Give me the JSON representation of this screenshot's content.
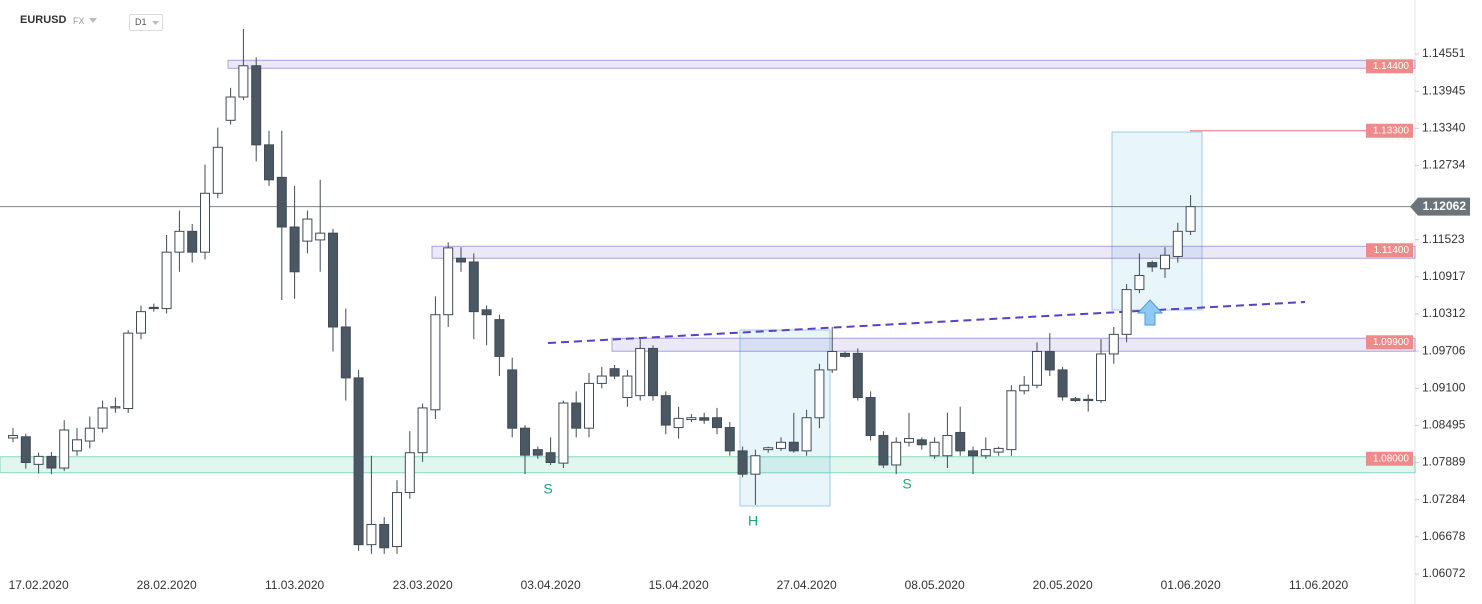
{
  "header": {
    "symbol": "EURUSD",
    "market": "FX",
    "interval": "D1"
  },
  "chart_data": {
    "type": "candlestick",
    "categories": [
      null,
      null,
      "17.02.2020",
      null,
      null,
      null,
      null,
      null,
      null,
      null,
      null,
      null,
      "28.02.2020",
      null,
      null,
      null,
      null,
      null,
      null,
      null,
      null,
      null,
      "11.03.2020",
      null,
      null,
      null,
      null,
      null,
      null,
      null,
      null,
      null,
      "23.03.2020",
      null,
      null,
      null,
      null,
      null,
      null,
      null,
      null,
      null,
      "03.04.2020",
      null,
      null,
      null,
      null,
      null,
      null,
      null,
      null,
      null,
      "15.04.2020",
      null,
      null,
      null,
      null,
      null,
      null,
      null,
      null,
      null,
      "27.04.2020",
      null,
      null,
      null,
      null,
      null,
      null,
      null,
      null,
      null,
      "08.05.2020",
      null,
      null,
      null,
      null,
      null,
      null,
      null,
      null,
      null,
      "20.05.2020",
      null,
      null,
      null,
      null,
      null,
      null,
      null,
      null,
      null,
      "01.06.2020",
      null,
      null,
      null,
      null,
      null,
      null,
      null,
      null,
      null,
      "11.06.2020"
    ],
    "open": [
      1.0829,
      1.0831,
      1.0786,
      1.0799,
      1.078,
      1.0808,
      1.0824,
      1.0845,
      1.0878,
      1.0877,
      1.1,
      1.1042,
      1.104,
      1.1132,
      1.1166,
      1.1132,
      1.1228,
      1.1347,
      1.1385,
      1.1436,
      1.1307,
      1.1254,
      1.1173,
      1.115,
      1.1152,
      1.1163,
      1.101,
      1.0927,
      1.0655,
      1.0688,
      1.0652,
      1.074,
      1.0805,
      1.0875,
      1.103,
      1.1122,
      1.1116,
      1.1038,
      1.1022,
      1.094,
      1.0845,
      1.081,
      1.0805,
      1.0788,
      1.0886,
      1.0845,
      1.0918,
      1.0942,
      1.0895,
      1.0898,
      1.0975,
      1.0898,
      1.0846,
      1.0859,
      1.0862,
      1.0862,
      1.0846,
      1.0808,
      1.077,
      1.081,
      1.0812,
      1.0822,
      1.0808,
      1.0862,
      1.094,
      1.0967,
      1.0967,
      1.0895,
      1.0833,
      1.0785,
      1.0822,
      1.0826,
      1.08,
      1.08,
      1.0838,
      1.0808,
      1.08,
      1.0806,
      1.081,
      1.0906,
      1.0915,
      1.097,
      1.094,
      1.0893,
      1.0892,
      1.089,
      1.0966,
      1.0998,
      1.1071,
      1.1115,
      1.1105,
      1.1125,
      1.1166,
      null,
      null,
      null,
      null,
      null,
      null,
      null,
      null,
      null,
      null
    ],
    "high": [
      1.0845,
      1.0836,
      1.0805,
      1.0806,
      1.0858,
      1.0845,
      1.0864,
      1.089,
      1.0895,
      1.1005,
      1.1045,
      1.1048,
      1.116,
      1.12,
      1.1178,
      1.1275,
      1.1335,
      1.14,
      1.1496,
      1.145,
      1.133,
      1.133,
      1.124,
      1.12,
      1.125,
      1.117,
      1.104,
      1.094,
      1.08,
      1.07,
      1.076,
      1.084,
      1.0885,
      1.106,
      1.1148,
      1.114,
      1.113,
      1.1045,
      1.103,
      1.096,
      1.085,
      1.0815,
      1.083,
      1.089,
      1.0905,
      1.0935,
      1.0945,
      1.0948,
      1.094,
      1.099,
      1.098,
      1.0905,
      1.088,
      1.0868,
      1.087,
      1.0878,
      1.0855,
      1.0815,
      1.081,
      1.0815,
      1.083,
      1.087,
      1.0875,
      1.095,
      1.101,
      1.097,
      1.0975,
      1.0905,
      1.084,
      1.083,
      1.087,
      1.083,
      1.083,
      1.087,
      1.088,
      1.0815,
      1.083,
      1.0815,
      1.0915,
      1.093,
      1.0985,
      1.1,
      1.0945,
      1.0896,
      1.09,
      1.099,
      1.101,
      1.108,
      1.113,
      1.1118,
      1.114,
      1.118,
      1.1225,
      null,
      null,
      null,
      null,
      null,
      null,
      null,
      null,
      null,
      null
    ],
    "low": [
      1.0822,
      1.0779,
      1.0771,
      1.077,
      1.0775,
      1.08,
      1.0812,
      1.0838,
      1.087,
      1.087,
      1.099,
      1.1035,
      1.1032,
      1.11,
      1.1115,
      1.112,
      1.122,
      1.134,
      1.138,
      1.128,
      1.124,
      1.1054,
      1.1056,
      1.113,
      1.11,
      1.097,
      1.089,
      1.0645,
      1.064,
      1.064,
      1.064,
      1.073,
      1.079,
      1.086,
      1.101,
      1.11,
      1.099,
      1.098,
      1.093,
      1.083,
      1.077,
      1.0795,
      1.0785,
      1.078,
      1.083,
      1.083,
      1.091,
      1.0925,
      1.088,
      1.089,
      1.089,
      1.0835,
      1.0828,
      1.0855,
      1.0852,
      1.0835,
      1.08,
      1.0765,
      1.072,
      1.0805,
      1.0808,
      1.0805,
      1.08,
      1.0845,
      1.0935,
      1.096,
      1.089,
      1.0825,
      1.078,
      1.077,
      1.0815,
      1.081,
      1.0795,
      1.078,
      1.08,
      1.077,
      1.0795,
      1.08,
      1.08,
      1.09,
      1.091,
      1.093,
      1.089,
      1.0888,
      1.0872,
      1.0886,
      1.095,
      1.0985,
      1.1065,
      1.11,
      1.109,
      1.1115,
      1.116,
      null,
      null,
      null,
      null,
      null,
      null,
      null,
      null,
      null,
      null
    ],
    "close": [
      1.0833,
      1.0789,
      1.0799,
      1.078,
      1.0842,
      1.0826,
      1.0845,
      1.0878,
      1.088,
      1.1,
      1.1035,
      1.104,
      1.1132,
      1.1166,
      1.1132,
      1.1228,
      1.1303,
      1.1385,
      1.1436,
      1.1307,
      1.125,
      1.1173,
      1.11,
      1.1186,
      1.1163,
      1.101,
      1.0927,
      1.0655,
      1.0688,
      1.065,
      1.074,
      1.0805,
      1.0878,
      1.103,
      1.1139,
      1.1116,
      1.1035,
      1.103,
      1.0962,
      1.0845,
      1.0801,
      1.0801,
      1.0789,
      1.0886,
      1.0845,
      1.0918,
      1.093,
      1.093,
      1.093,
      1.0975,
      1.0898,
      1.085,
      1.0861,
      1.0862,
      1.0858,
      1.0846,
      1.0808,
      1.077,
      1.08,
      1.0813,
      1.0822,
      1.0808,
      1.0862,
      1.094,
      1.097,
      1.0962,
      1.0895,
      1.0833,
      1.0785,
      1.0822,
      1.0828,
      1.0818,
      1.0822,
      1.0833,
      1.0808,
      1.08,
      1.081,
      1.0812,
      1.0906,
      1.0915,
      1.097,
      1.094,
      1.0896,
      1.089,
      1.089,
      1.0966,
      1.0998,
      1.1071,
      1.1094,
      1.1108,
      1.1127,
      1.1166,
      1.12062,
      null,
      null,
      null,
      null,
      null,
      null,
      null,
      null,
      null,
      null
    ],
    "up_color": "#ffffff",
    "down_color": "#4b5863",
    "edge_color": "#3f4b55",
    "ylim": [
      1.05648,
      1.15432
    ],
    "yticks": [
      1.14551,
      1.13945,
      {
        "value": 1.1334,
        "label": "1.13340"
      },
      1.12734,
      1.11523,
      1.10917,
      1.10312,
      1.09706,
      {
        "value": 1.091,
        "label": "1.09100"
      },
      1.08495,
      1.07889,
      1.07284,
      1.06678,
      1.06072
    ],
    "levels": [
      {
        "value": 1.144,
        "label": "1.14400",
        "color": "#7b68c8"
      },
      {
        "value": 1.114,
        "label": "1.11400",
        "color": "#7b68c8"
      },
      {
        "value": 1.099,
        "label": "1.09900",
        "color": "#7b68c8"
      },
      {
        "value": 1.08,
        "label": "1.08000",
        "color": "#3cc39a"
      }
    ],
    "target": {
      "value": 1.133,
      "label": "1.13300",
      "color": "#e57373"
    },
    "current_price": {
      "value": 1.12062,
      "label": "1.12062"
    },
    "annotations": [
      "S",
      "H",
      "S"
    ]
  }
}
